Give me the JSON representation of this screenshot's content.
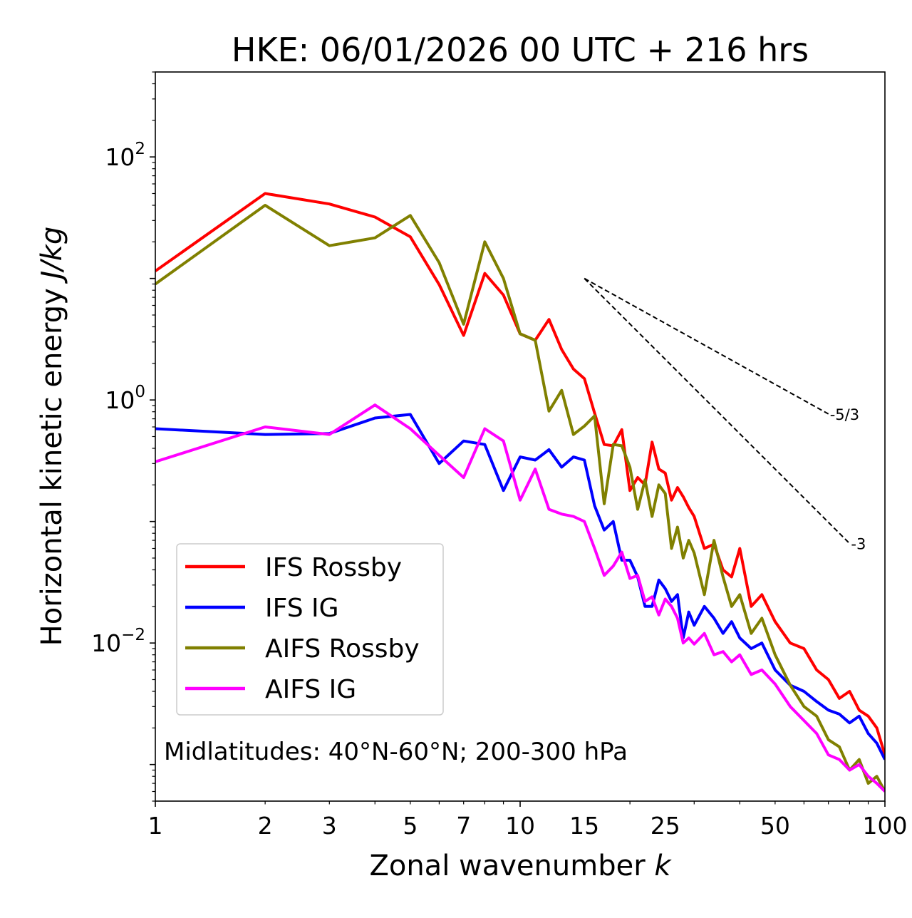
{
  "chart_data": {
    "type": "line",
    "title": "HKE: 06/01/2026 00 UTC + 216 hrs",
    "xlabel": "Zonal wavenumber",
    "xlabel_var": "k",
    "ylabel": "Horizontal kinetic energy",
    "ylabel_units": "J/kg",
    "xscale": "log",
    "yscale": "log",
    "xlim": [
      1,
      100
    ],
    "ylim": [
      0.0005,
      500
    ],
    "grid": false,
    "x_ticks": [
      {
        "value": 1,
        "label": "1"
      },
      {
        "value": 2,
        "label": "2"
      },
      {
        "value": 3,
        "label": "3"
      },
      {
        "value": 5,
        "label": "5"
      },
      {
        "value": 7,
        "label": "7"
      },
      {
        "value": 10,
        "label": "10"
      },
      {
        "value": 15,
        "label": "15"
      },
      {
        "value": 25,
        "label": "25"
      },
      {
        "value": 50,
        "label": "50"
      },
      {
        "value": 100,
        "label": "100"
      }
    ],
    "y_ticks": [
      {
        "value": 100,
        "base": "10",
        "exp": "2"
      },
      {
        "value": 1,
        "base": "10",
        "exp": "0"
      },
      {
        "value": 0.01,
        "base": "10",
        "exp": "−2"
      }
    ],
    "x": [
      1,
      2,
      3,
      4,
      5,
      6,
      7,
      8,
      9,
      10,
      11,
      12,
      13,
      14,
      15,
      16,
      17,
      18,
      19,
      20,
      21,
      22,
      23,
      24,
      25,
      26,
      27,
      28,
      29,
      30,
      32,
      34,
      36,
      38,
      40,
      43,
      46,
      50,
      55,
      60,
      65,
      70,
      75,
      80,
      85,
      90,
      95,
      100
    ],
    "series": [
      {
        "name": "IFS Rossby",
        "color": "#ff0000",
        "values": [
          11.5,
          50,
          41,
          32,
          22,
          8.9,
          3.4,
          11,
          7.3,
          3.5,
          3.1,
          4.6,
          2.6,
          1.8,
          1.5,
          0.78,
          0.43,
          0.42,
          0.57,
          0.18,
          0.23,
          0.2,
          0.45,
          0.27,
          0.25,
          0.15,
          0.19,
          0.16,
          0.13,
          0.11,
          0.06,
          0.065,
          0.04,
          0.035,
          0.06,
          0.02,
          0.025,
          0.015,
          0.01,
          0.009,
          0.006,
          0.005,
          0.0035,
          0.004,
          0.0028,
          0.0025,
          0.002,
          0.0012
        ]
      },
      {
        "name": "IFS IG",
        "color": "#0000ff",
        "values": [
          0.58,
          0.52,
          0.53,
          0.71,
          0.76,
          0.3,
          0.46,
          0.43,
          0.18,
          0.34,
          0.32,
          0.39,
          0.28,
          0.34,
          0.32,
          0.135,
          0.085,
          0.1,
          0.048,
          0.048,
          0.035,
          0.02,
          0.02,
          0.033,
          0.028,
          0.022,
          0.025,
          0.011,
          0.018,
          0.014,
          0.02,
          0.016,
          0.012,
          0.015,
          0.011,
          0.009,
          0.01,
          0.006,
          0.0045,
          0.004,
          0.0033,
          0.0028,
          0.0026,
          0.0022,
          0.0025,
          0.0018,
          0.0015,
          0.0011
        ]
      },
      {
        "name": "AIFS Rossby",
        "color": "#808000",
        "values": [
          9.0,
          40,
          18.6,
          21.6,
          33,
          13.5,
          4.2,
          20,
          10,
          3.5,
          3.1,
          0.81,
          1.2,
          0.52,
          0.61,
          0.74,
          0.14,
          0.43,
          0.42,
          0.28,
          0.126,
          0.22,
          0.11,
          0.2,
          0.17,
          0.06,
          0.09,
          0.05,
          0.07,
          0.055,
          0.025,
          0.07,
          0.035,
          0.02,
          0.025,
          0.012,
          0.016,
          0.008,
          0.0045,
          0.003,
          0.0025,
          0.0016,
          0.0014,
          0.0009,
          0.0011,
          0.0007,
          0.0008,
          0.0006
        ]
      },
      {
        "name": "AIFS IG",
        "color": "#ff00ff",
        "values": [
          0.31,
          0.6,
          0.52,
          0.91,
          0.58,
          0.35,
          0.23,
          0.58,
          0.46,
          0.15,
          0.27,
          0.126,
          0.115,
          0.11,
          0.1,
          0.06,
          0.036,
          0.043,
          0.056,
          0.034,
          0.036,
          0.022,
          0.024,
          0.017,
          0.023,
          0.02,
          0.016,
          0.01,
          0.011,
          0.0098,
          0.012,
          0.008,
          0.0085,
          0.007,
          0.008,
          0.0055,
          0.006,
          0.0046,
          0.003,
          0.0023,
          0.0018,
          0.0012,
          0.0011,
          0.0009,
          0.001,
          0.0008,
          0.0007,
          0.0006
        ]
      }
    ],
    "reference_slopes": [
      {
        "label": "-5/3",
        "slope": -1.6667,
        "k_start": 15,
        "k_end": 70,
        "y_start": 10
      },
      {
        "label": "-3",
        "slope": -3,
        "k_start": 15,
        "k_end": 80,
        "y_start": 10
      }
    ],
    "legend_position": "lower-left",
    "annotation": "Midlatitudes: 40°N-60°N; 200-300 hPa"
  }
}
